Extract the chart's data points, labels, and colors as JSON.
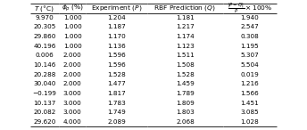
{
  "columns": [
    "T (°C)",
    "ϕp (%)",
    "Experiment (P)",
    "RBF Prediction (Q)",
    "|P−Q|/P ×100%"
  ],
  "col_headers_display": [
    "T (°C)",
    "ϕₚ (%)",
    "Experiment (P)",
    "RBF Prediction (Q)",
    "×100%"
  ],
  "rows": [
    [
      "9.970",
      "1.000",
      "1.204",
      "1.181",
      "1.940"
    ],
    [
      "20.305",
      "1.000",
      "1.187",
      "1.217",
      "2.547"
    ],
    [
      "29.860",
      "1.000",
      "1.170",
      "1.174",
      "0.308"
    ],
    [
      "40.196",
      "1.000",
      "1.136",
      "1.123",
      "1.195"
    ],
    [
      "0.006",
      "2.000",
      "1.596",
      "1.511",
      "5.307"
    ],
    [
      "10.146",
      "2.000",
      "1.596",
      "1.508",
      "5.504"
    ],
    [
      "20.288",
      "2.000",
      "1.528",
      "1.528",
      "0.019"
    ],
    [
      "30.040",
      "2.000",
      "1.477",
      "1.459",
      "1.216"
    ],
    [
      "−0.199",
      "3.000",
      "1.817",
      "1.789",
      "1.566"
    ],
    [
      "10.137",
      "3.000",
      "1.783",
      "1.809",
      "1.451"
    ],
    [
      "20.082",
      "3.000",
      "1.749",
      "1.803",
      "3.085"
    ],
    [
      "29.620",
      "4.000",
      "2.089",
      "2.068",
      "1.028"
    ]
  ],
  "header_fraction": "|P−Q| / P × 100%",
  "figsize": [
    3.44,
    1.46
  ],
  "dpi": 100,
  "font_size": 5.2,
  "header_font_size": 5.4
}
